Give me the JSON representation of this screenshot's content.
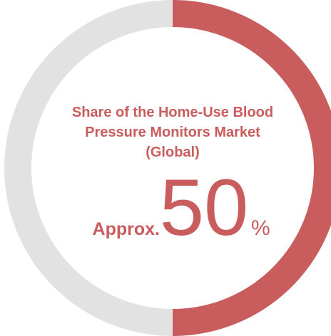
{
  "chart_data": {
    "type": "donut",
    "title": "Share of the Home-Use Blood Pressure Monitors Market (Global)",
    "prefix": "Approx.",
    "values": [
      50
    ],
    "unit": "%",
    "color": "#c95c5c",
    "track_color": "#e2e2e2"
  }
}
